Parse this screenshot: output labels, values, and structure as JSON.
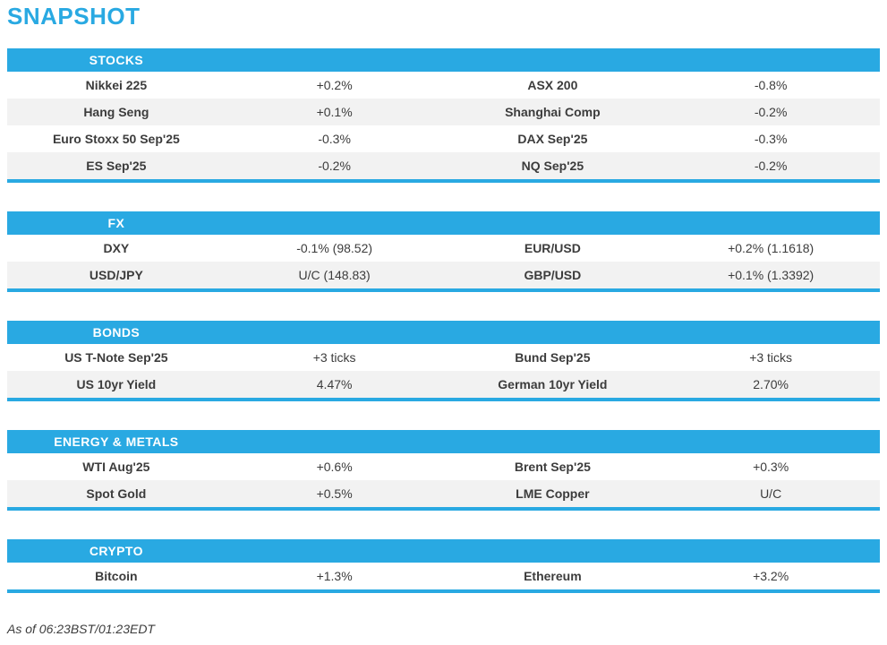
{
  "page": {
    "title": "SNAPSHOT",
    "as_of": "As of 06:23BST/01:23EDT"
  },
  "colors": {
    "accent_blue": "#29A9E2",
    "row_alt_background": "#F2F2F2",
    "text": "#3C3C3C",
    "header_text": "#FFFFFF"
  },
  "sections": [
    {
      "header": "STOCKS",
      "rows": [
        {
          "label1": "Nikkei 225",
          "value1": "+0.2%",
          "label2": "ASX 200",
          "value2": "-0.8%"
        },
        {
          "label1": "Hang Seng",
          "value1": "+0.1%",
          "label2": "Shanghai Comp",
          "value2": "-0.2%"
        },
        {
          "label1": "Euro Stoxx 50 Sep'25",
          "value1": "-0.3%",
          "label2": "DAX Sep'25",
          "value2": "-0.3%"
        },
        {
          "label1": "ES Sep'25",
          "value1": "-0.2%",
          "label2": "NQ Sep'25",
          "value2": "-0.2%"
        }
      ]
    },
    {
      "header": "FX",
      "rows": [
        {
          "label1": "DXY",
          "value1": "-0.1% (98.52)",
          "label2": "EUR/USD",
          "value2": "+0.2% (1.1618)"
        },
        {
          "label1": "USD/JPY",
          "value1": "U/C (148.83)",
          "label2": "GBP/USD",
          "value2": "+0.1% (1.3392)"
        }
      ]
    },
    {
      "header": "BONDS",
      "rows": [
        {
          "label1": "US T-Note Sep'25",
          "value1": "+3 ticks",
          "label2": "Bund Sep'25",
          "value2": "+3 ticks"
        },
        {
          "label1": "US 10yr Yield",
          "value1": "4.47%",
          "label2": "German 10yr Yield",
          "value2": "2.70%"
        }
      ]
    },
    {
      "header": "ENERGY & METALS",
      "rows": [
        {
          "label1": "WTI Aug'25",
          "value1": "+0.6%",
          "label2": "Brent Sep'25",
          "value2": "+0.3%"
        },
        {
          "label1": "Spot Gold",
          "value1": "+0.5%",
          "label2": "LME Copper",
          "value2": "U/C"
        }
      ]
    },
    {
      "header": "CRYPTO",
      "rows": [
        {
          "label1": "Bitcoin",
          "value1": "+1.3%",
          "label2": "Ethereum",
          "value2": "+3.2%"
        }
      ]
    }
  ]
}
